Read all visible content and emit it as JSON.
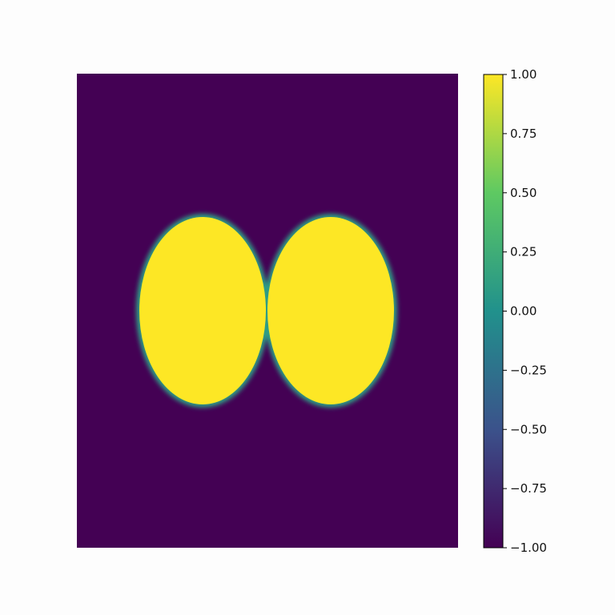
{
  "chart_data": {
    "type": "heatmap",
    "title": "",
    "xlabel": "",
    "ylabel": "",
    "axes_visible": false,
    "colormap": "viridis",
    "colormap_stops": [
      "#440154",
      "#3b528b",
      "#21918c",
      "#5ec962",
      "#fde725"
    ],
    "background_value": -1.0,
    "region_value": 1.0,
    "regions": [
      {
        "shape": "disk",
        "name": "left-disk"
      },
      {
        "shape": "disk",
        "name": "right-disk"
      }
    ],
    "colorbar": {
      "vmin": -1.0,
      "vmax": 1.0,
      "ticks": [
        1.0,
        0.75,
        0.5,
        0.25,
        0.0,
        -0.25,
        -0.5,
        -0.75,
        -1.0
      ],
      "tick_labels": [
        "1.00",
        "0.75",
        "0.50",
        "0.25",
        "0.00",
        "−0.25",
        "−0.50",
        "−0.75",
        "−1.00"
      ]
    }
  }
}
